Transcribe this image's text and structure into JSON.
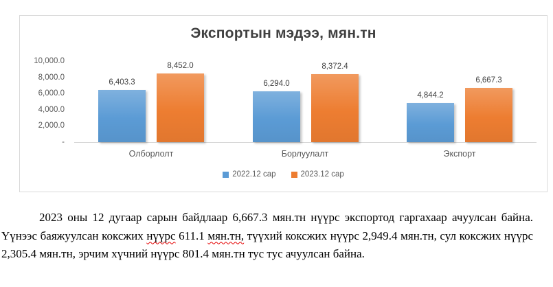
{
  "chart_data": {
    "type": "bar",
    "title": "Экспортын мэдээ, мян.тн",
    "categories": [
      "Олборлолт",
      "Борлуулалт",
      "Экспорт"
    ],
    "series": [
      {
        "name": "2022.12 сар",
        "color": "#5B9BD5",
        "values": [
          6403.3,
          6294.0,
          4844.2
        ],
        "labels": [
          "6,403.3",
          "6,294.0",
          "4,844.2"
        ]
      },
      {
        "name": "2023.12 сар",
        "color": "#ED7D31",
        "values": [
          8452.0,
          8372.4,
          6667.3
        ],
        "labels": [
          "8,452.0",
          "8,372.4",
          "6,667.3"
        ]
      }
    ],
    "y_axis": {
      "max": 10000,
      "ticks": [
        "10,000.0",
        "8,000.0",
        "6,000.0",
        "4,000.0",
        "2,000.0",
        "-"
      ]
    },
    "xlabel": "",
    "ylabel": "",
    "grid": false,
    "legend_position": "bottom",
    "frame_border_color": "#d9d9d9",
    "axis_line_color": "#d6d6d6",
    "title_color": "#404040",
    "label_color": "#595959"
  },
  "paragraph": {
    "segments": [
      {
        "text": "2023 оны 12 дугаар сарын байдлаар 6,667.3 мян.тн нүүрс экспортод гаргахаар ачуулсан байна. Үүнээс баяжуулсан коксжих ",
        "misspelled": false
      },
      {
        "text": "нүүрс",
        "misspelled": true
      },
      {
        "text": " 611.1 ",
        "misspelled": false
      },
      {
        "text": "мян.тн,",
        "misspelled": true
      },
      {
        "text": " түүхий коксжих нүүрс 2,949.4 мян.тн, сул коксжих нүүрс 2,305.4 мян.тн, эрчим хүчний нүүрс 801.4 мян.тн тус тус ачуулсан байна.",
        "misspelled": false
      }
    ]
  }
}
